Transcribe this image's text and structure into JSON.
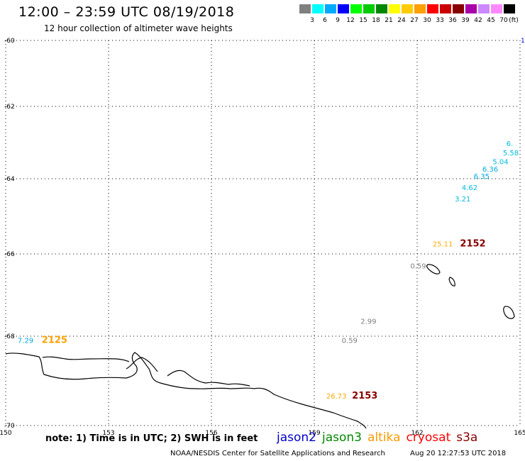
{
  "title": "12:00 – 23:59 UTC 08/19/2018",
  "subtitle": "12 hour collection of altimeter wave heights",
  "legend": {
    "unit": "(ft)",
    "bins": [
      {
        "label": "",
        "color": "#808080"
      },
      {
        "label": "3",
        "color": "#00ffff"
      },
      {
        "label": "6",
        "color": "#00aaff"
      },
      {
        "label": "9",
        "color": "#0000ff"
      },
      {
        "label": "12",
        "color": "#00ff00"
      },
      {
        "label": "15",
        "color": "#00cc00"
      },
      {
        "label": "18",
        "color": "#008800"
      },
      {
        "label": "21",
        "color": "#ffff00"
      },
      {
        "label": "24",
        "color": "#ffcc00"
      },
      {
        "label": "27",
        "color": "#ffa000"
      },
      {
        "label": "30",
        "color": "#ff0000"
      },
      {
        "label": "33",
        "color": "#cc0000"
      },
      {
        "label": "36",
        "color": "#880000"
      },
      {
        "label": "39",
        "color": "#aa00aa"
      },
      {
        "label": "42",
        "color": "#cc88ff"
      },
      {
        "label": "45",
        "color": "#ff88ff"
      },
      {
        "label": "70",
        "color": "#000000"
      }
    ]
  },
  "axes": {
    "lat_labels": [
      "-60",
      "-62",
      "-64",
      "-66",
      "-68",
      "-70"
    ],
    "lon_labels": [
      "150",
      "153",
      "156",
      "159",
      "162",
      "165"
    ],
    "right_edge_label": "1"
  },
  "observations": [
    {
      "text": "6.",
      "color": "#00bbdd",
      "lon": 164.6,
      "lat": -63.1
    },
    {
      "text": "5.58",
      "color": "#00bbdd",
      "lon": 164.5,
      "lat": -63.35
    },
    {
      "text": "5.04",
      "color": "#00bbdd",
      "lon": 164.2,
      "lat": -63.6
    },
    {
      "text": "6.36",
      "color": "#00aadd",
      "lon": 163.9,
      "lat": -63.8
    },
    {
      "text": "6.35",
      "color": "#00aadd",
      "lon": 163.65,
      "lat": -64.0
    },
    {
      "text": "4.62",
      "color": "#00bbdd",
      "lon": 163.3,
      "lat": -64.3
    },
    {
      "text": "3.21",
      "color": "#00bbdd",
      "lon": 163.1,
      "lat": -64.6
    },
    {
      "text": "25.11",
      "color": "#ffaa00",
      "lon": 162.45,
      "lat": -65.8
    },
    {
      "text": "0.59",
      "color": "#808080",
      "lon": 161.8,
      "lat": -66.35
    },
    {
      "text": "2.99",
      "color": "#808080",
      "lon": 160.35,
      "lat": -67.7
    },
    {
      "text": "0.59",
      "color": "#808080",
      "lon": 159.8,
      "lat": -68.15
    },
    {
      "text": "7.29",
      "color": "#00aadd",
      "lon": 150.35,
      "lat": -68.15
    },
    {
      "text": "26.73",
      "color": "#ffaa00",
      "lon": 159.35,
      "lat": -69.4
    }
  ],
  "pass_times": [
    {
      "text": "2152",
      "color": "#880000",
      "lon": 163.25,
      "lat": -65.8
    },
    {
      "text": "2125",
      "color": "#ffa000",
      "lon": 151.05,
      "lat": -68.15
    },
    {
      "text": "2153",
      "color": "#880000",
      "lon": 160.1,
      "lat": -69.4
    }
  ],
  "note": "note: 1) Time is in UTC; 2) SWH is in feet",
  "satellites": [
    {
      "name": "jason2",
      "color": "#0000cc"
    },
    {
      "name": "jason3",
      "color": "#008800"
    },
    {
      "name": "altika",
      "color": "#ff9900"
    },
    {
      "name": "cryosat",
      "color": "#ff0000"
    },
    {
      "name": "s3a",
      "color": "#880000"
    }
  ],
  "footer_left": "NOAA/NESDIS Center for Satellite Applications and Research",
  "footer_right": "Aug 20 12:27:53 UTC 2018"
}
